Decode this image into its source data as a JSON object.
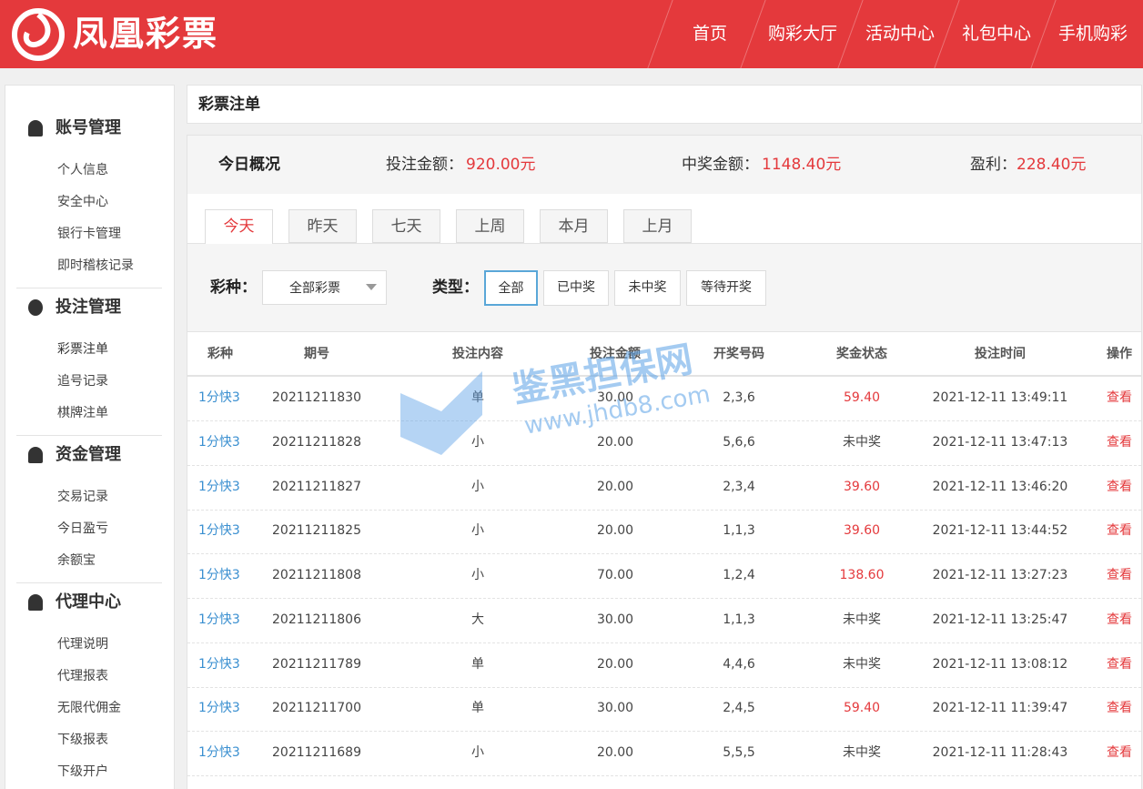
{
  "header": {
    "logo": "凤凰彩票",
    "nav": [
      "首页",
      "购彩大厅",
      "活动中心",
      "礼包中心",
      "手机购彩"
    ]
  },
  "sidebar": [
    {
      "title": "账号管理",
      "items": [
        "个人信息",
        "安全中心",
        "银行卡管理",
        "即时稽核记录"
      ]
    },
    {
      "title": "投注管理",
      "items": [
        "彩票注单",
        "追号记录",
        "棋牌注单"
      ]
    },
    {
      "title": "资金管理",
      "items": [
        "交易记录",
        "今日盈亏",
        "余额宝"
      ]
    },
    {
      "title": "代理中心",
      "items": [
        "代理说明",
        "代理报表",
        "无限代佣金",
        "下级报表",
        "下级开户"
      ]
    }
  ],
  "main": {
    "title": "彩票注单",
    "summary": {
      "label": "今日概况",
      "items": [
        {
          "label": "投注金额：",
          "value": "920.00元"
        },
        {
          "label": "中奖金额：",
          "value": "1148.40元"
        },
        {
          "label": "盈利：",
          "value": "228.40元"
        }
      ]
    },
    "tabs": [
      "今天",
      "昨天",
      "七天",
      "上周",
      "本月",
      "上月"
    ],
    "filters": {
      "lottery_label": "彩种：",
      "lottery_select": "全部彩票",
      "type_label": "类型：",
      "types": [
        "全部",
        "已中奖",
        "未中奖",
        "等待开奖"
      ]
    },
    "table": {
      "headers": [
        "彩种",
        "期号",
        "投注内容",
        "投注金额",
        "开奖号码",
        "奖金状态",
        "投注时间",
        "操作"
      ],
      "rows": [
        [
          "1分快3",
          "20211211830",
          "单",
          "30.00",
          "2,3,6",
          "59.40",
          "2021-12-11 13:49:11",
          "查看"
        ],
        [
          "1分快3",
          "20211211828",
          "小",
          "20.00",
          "5,6,6",
          "未中奖",
          "2021-12-11 13:47:13",
          "查看"
        ],
        [
          "1分快3",
          "20211211827",
          "小",
          "20.00",
          "2,3,4",
          "39.60",
          "2021-12-11 13:46:20",
          "查看"
        ],
        [
          "1分快3",
          "20211211825",
          "小",
          "20.00",
          "1,1,3",
          "39.60",
          "2021-12-11 13:44:52",
          "查看"
        ],
        [
          "1分快3",
          "20211211808",
          "小",
          "70.00",
          "1,2,4",
          "138.60",
          "2021-12-11 13:27:23",
          "查看"
        ],
        [
          "1分快3",
          "20211211806",
          "大",
          "30.00",
          "1,1,3",
          "未中奖",
          "2021-12-11 13:25:47",
          "查看"
        ],
        [
          "1分快3",
          "20211211789",
          "单",
          "20.00",
          "4,4,6",
          "未中奖",
          "2021-12-11 13:08:12",
          "查看"
        ],
        [
          "1分快3",
          "20211211700",
          "单",
          "30.00",
          "2,4,5",
          "59.40",
          "2021-12-11 11:39:47",
          "查看"
        ],
        [
          "1分快3",
          "20211211689",
          "小",
          "20.00",
          "5,5,5",
          "未中奖",
          "2021-12-11 11:28:43",
          "查看"
        ]
      ]
    }
  },
  "watermark": {
    "name": "鉴黑担保网",
    "url": "www.jhdb8.com"
  }
}
